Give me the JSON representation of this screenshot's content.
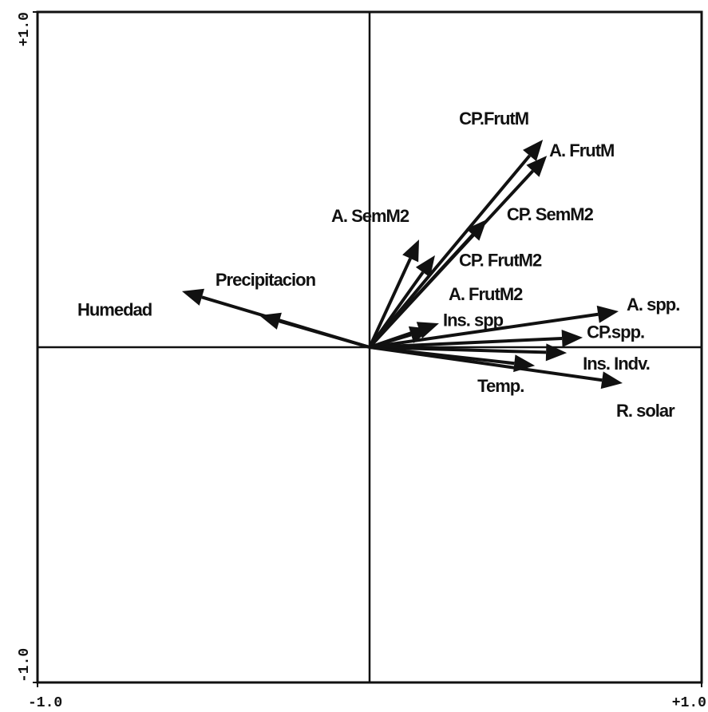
{
  "chart_data": {
    "type": "biplot",
    "labels": [
      "Humedad",
      "Precipitacion",
      "A. SemM2",
      "CP. FrutM2",
      "CP. SemM2",
      "CP.FrutM",
      "A. FrutM",
      "A. FrutM2",
      "Ins. spp",
      "A. spp.",
      "CP.spp.",
      "Ins. Indv.",
      "Temp.",
      "R. solar"
    ],
    "x": [
      -0.565,
      -0.332,
      0.149,
      0.197,
      0.353,
      0.522,
      0.534,
      0.209,
      0.185,
      0.75,
      0.642,
      0.594,
      0.498,
      0.762
    ],
    "y": [
      0.167,
      0.095,
      0.321,
      0.274,
      0.381,
      0.619,
      0.571,
      0.071,
      0.055,
      0.107,
      0.029,
      -0.017,
      -0.055,
      -0.107
    ],
    "color": "#111111",
    "xlim": [
      -1,
      1
    ],
    "ylim": [
      -1,
      1
    ],
    "xticks": [
      {
        "value": -1,
        "label": "-1.0"
      },
      {
        "value": 1,
        "label": "+1.0"
      }
    ],
    "yticks": [
      {
        "value": -1,
        "label": "-1.0"
      },
      {
        "value": 1,
        "label": "+1.0"
      }
    ]
  }
}
